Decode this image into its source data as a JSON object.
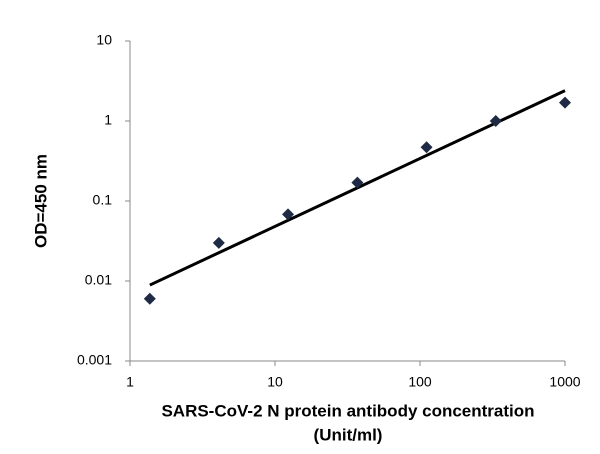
{
  "chart_data": {
    "type": "scatter",
    "xlabel": [
      "SARS-CoV-2 N protein antibody concentration",
      "(Unit/ml)"
    ],
    "ylabel": "OD=450 nm",
    "xscale": "log",
    "yscale": "log",
    "xlim": [
      1,
      1000
    ],
    "ylim": [
      0.001,
      10
    ],
    "xticks": [
      1,
      10,
      100,
      1000
    ],
    "yticks": [
      0.001,
      0.01,
      0.1,
      1,
      10
    ],
    "series": [
      {
        "x": [
          1.37,
          4.1,
          12.3,
          37,
          111,
          333,
          1000
        ],
        "values": [
          0.006,
          0.03,
          0.068,
          0.17,
          0.47,
          1.0,
          1.7
        ],
        "color": "#1f2a44"
      }
    ],
    "trendline": {
      "x": [
        1.37,
        1000
      ],
      "values": [
        0.0089,
        2.4
      ],
      "color": "#000000"
    }
  }
}
